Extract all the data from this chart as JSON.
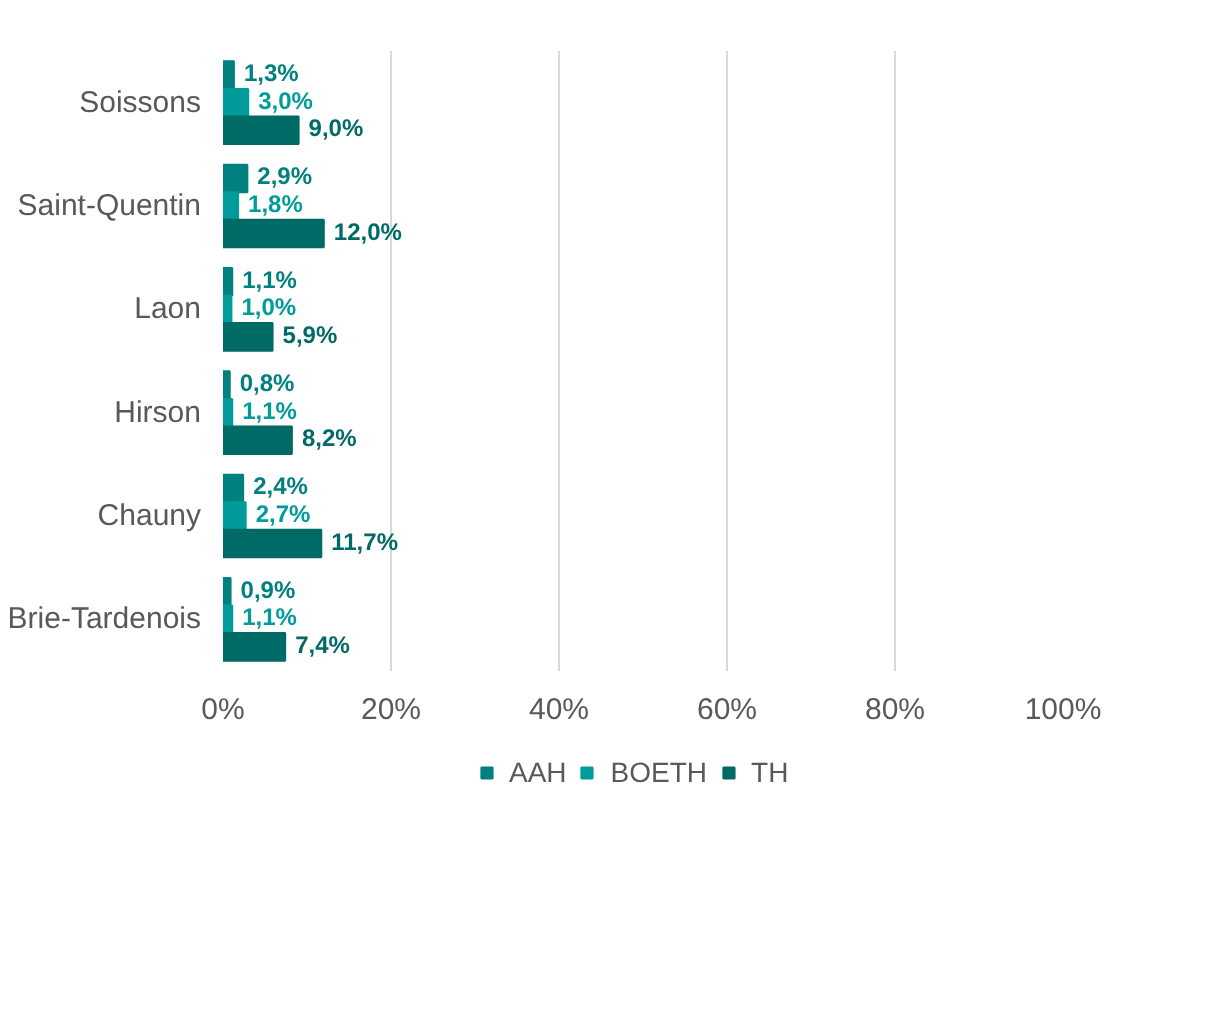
{
  "chart_data": {
    "type": "bar",
    "orientation": "horizontal",
    "categories": [
      "Soissons",
      "Saint-Quentin",
      "Laon",
      "Hirson",
      "Chauny",
      "Brie-Tardenois"
    ],
    "series": [
      {
        "name": "AAH",
        "color": "#00807f",
        "values": [
          1.3,
          2.9,
          1.1,
          0.8,
          2.4,
          0.9
        ],
        "value_labels": [
          "1,3%",
          "2,9%",
          "1,1%",
          "0,8%",
          "2,4%",
          "0,9%"
        ]
      },
      {
        "name": "BOETH",
        "color": "#009b9a",
        "values": [
          3.0,
          1.8,
          1.0,
          1.1,
          2.7,
          1.1
        ],
        "value_labels": [
          "3,0%",
          "1,8%",
          "1,0%",
          "1,1%",
          "2,7%",
          "1,1%"
        ]
      },
      {
        "name": "TH",
        "color": "#006a66",
        "values": [
          9.0,
          12.0,
          5.9,
          8.2,
          11.7,
          7.4
        ],
        "value_labels": [
          "9,0%",
          "12,0%",
          "5,9%",
          "8,2%",
          "11,7%",
          "7,4%"
        ]
      }
    ],
    "xlim": [
      0,
      100
    ],
    "xticks": [
      {
        "value": 0,
        "label": "0%"
      },
      {
        "value": 20,
        "label": "20%"
      },
      {
        "value": 40,
        "label": "40%"
      },
      {
        "value": 60,
        "label": "60%"
      },
      {
        "value": 80,
        "label": "80%"
      },
      {
        "value": 100,
        "label": "100%"
      }
    ],
    "grid": "x",
    "legend": "bottom"
  }
}
